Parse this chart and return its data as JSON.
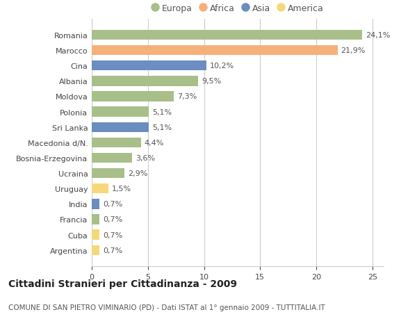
{
  "countries": [
    "Romania",
    "Marocco",
    "Cina",
    "Albania",
    "Moldova",
    "Polonia",
    "Sri Lanka",
    "Macedonia d/N.",
    "Bosnia-Erzegovina",
    "Ucraina",
    "Uruguay",
    "India",
    "Francia",
    "Cuba",
    "Argentina"
  ],
  "values": [
    24.1,
    21.9,
    10.2,
    9.5,
    7.3,
    5.1,
    5.1,
    4.4,
    3.6,
    2.9,
    1.5,
    0.7,
    0.7,
    0.7,
    0.7
  ],
  "labels": [
    "24,1%",
    "21,9%",
    "10,2%",
    "9,5%",
    "7,3%",
    "5,1%",
    "5,1%",
    "4,4%",
    "3,6%",
    "2,9%",
    "1,5%",
    "0,7%",
    "0,7%",
    "0,7%",
    "0,7%"
  ],
  "continents": [
    "Europa",
    "Africa",
    "Asia",
    "Europa",
    "Europa",
    "Europa",
    "Asia",
    "Europa",
    "Europa",
    "Europa",
    "America",
    "Asia",
    "Europa",
    "America",
    "America"
  ],
  "colors": {
    "Europa": "#a8bf8a",
    "Africa": "#f4b17a",
    "Asia": "#6b8dbf",
    "America": "#f5d87a"
  },
  "legend_order": [
    "Europa",
    "Africa",
    "Asia",
    "America"
  ],
  "legend_colors": [
    "#a8bf8a",
    "#f4b17a",
    "#6b8dbf",
    "#f5d87a"
  ],
  "xlim": [
    0,
    26
  ],
  "xticks": [
    0,
    5,
    10,
    15,
    20,
    25
  ],
  "title": "Cittadini Stranieri per Cittadinanza - 2009",
  "subtitle": "COMUNE DI SAN PIETRO VIMINARIO (PD) - Dati ISTAT al 1° gennaio 2009 - TUTTITALIA.IT",
  "background_color": "#ffffff",
  "grid_color": "#cccccc",
  "bar_height": 0.65,
  "label_fontsize": 8.0,
  "tick_fontsize": 8.0,
  "title_fontsize": 10,
  "subtitle_fontsize": 7.5
}
